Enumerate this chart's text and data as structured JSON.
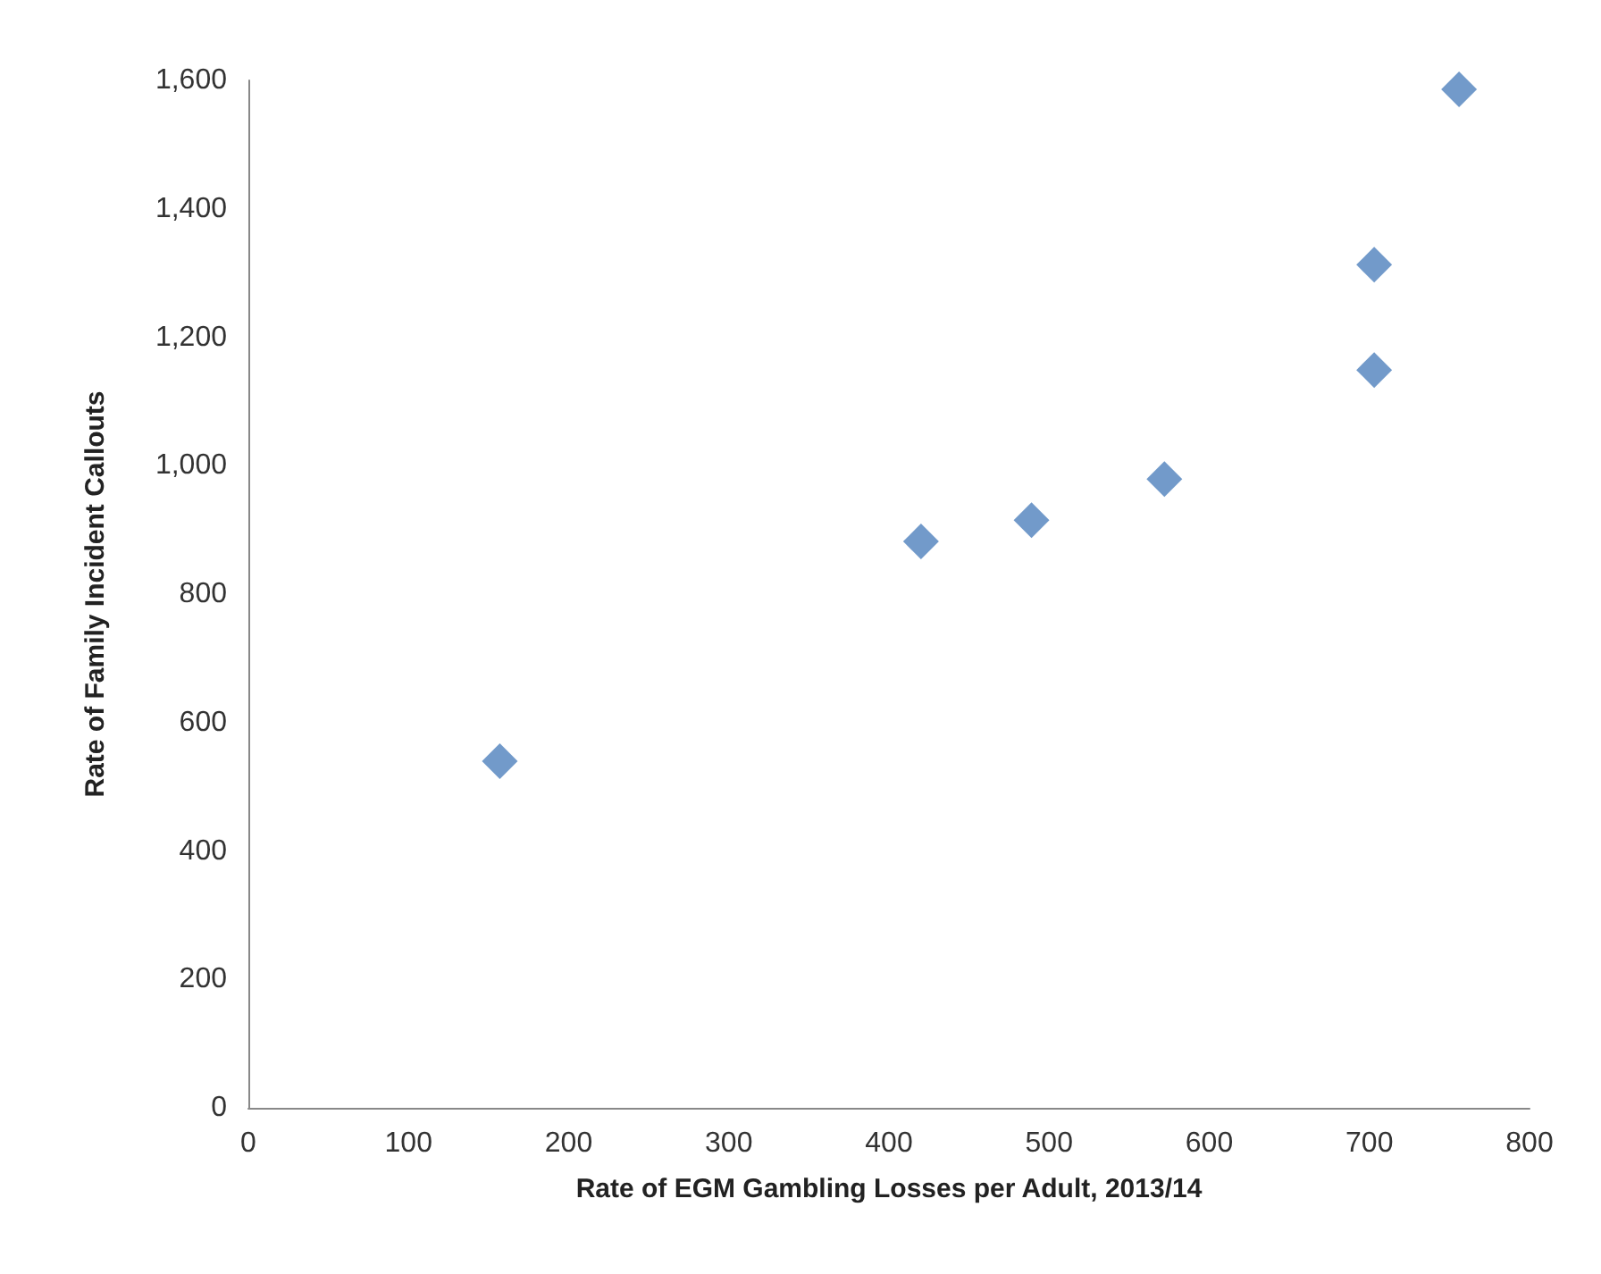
{
  "chart_data": {
    "type": "scatter",
    "xlabel": "Rate of EGM Gambling Losses per Adult, 2013/14",
    "ylabel": "Rate of Family Incident Callouts",
    "x": [
      157,
      420,
      489,
      572,
      703,
      703,
      756
    ],
    "series": [
      {
        "color": "#4f81bd",
        "values": [
          540,
          882,
          915,
          979,
          1149,
          1313,
          1586
        ]
      }
    ],
    "xlim": [
      0,
      800
    ],
    "xticks": [
      0,
      100,
      200,
      300,
      400,
      500,
      600,
      700,
      800
    ],
    "ylim": [
      0,
      1600
    ],
    "yticks": [
      {
        "value": 0,
        "label": "0"
      },
      {
        "value": 200,
        "label": "200"
      },
      {
        "value": 400,
        "label": "400"
      },
      {
        "value": 600,
        "label": "600"
      },
      {
        "value": 800,
        "label": "800"
      },
      {
        "value": 1000,
        "label": "1,000"
      },
      {
        "value": 1200,
        "label": "1,200"
      },
      {
        "value": 1400,
        "label": "1,400"
      },
      {
        "value": 1600,
        "label": "1,600"
      }
    ],
    "grid": false,
    "marker": "diamond"
  }
}
